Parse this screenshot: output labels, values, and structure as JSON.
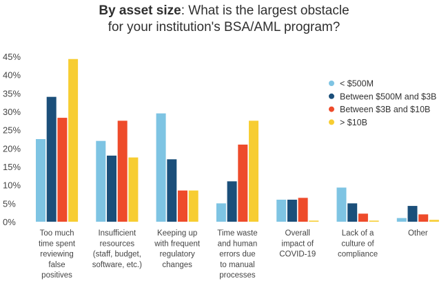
{
  "chart_data": {
    "type": "bar",
    "title_bold": "By asset size",
    "title_rest": ": What is the largest obstacle",
    "title_line2": "for your institution's BSA/AML program?",
    "xlabel": "",
    "ylabel": "",
    "ylim": [
      0,
      45
    ],
    "yticks": [
      "0%",
      "5%",
      "10%",
      "15%",
      "20%",
      "25%",
      "30%",
      "35%",
      "40%",
      "45%"
    ],
    "legend_position": "top-right",
    "grid": false,
    "categories": [
      [
        "Too much",
        "time spent",
        "reviewing",
        "false",
        "positives"
      ],
      [
        "Insufficient",
        "resources",
        "(staff, budget,",
        "software, etc.)"
      ],
      [
        "Keeping up",
        "with frequent",
        "regulatory",
        "changes"
      ],
      [
        "Time waste",
        "and human",
        "errors due",
        "to manual",
        "processes"
      ],
      [
        "Overall",
        "impact of",
        "COVID-19"
      ],
      [
        "Lack of a",
        "culture of",
        "compliance"
      ],
      [
        "Other"
      ]
    ],
    "series": [
      {
        "name": "< $500M",
        "color": "#7ec4e3",
        "values": [
          22.5,
          22,
          29.5,
          5,
          6,
          9.3,
          1
        ]
      },
      {
        "name": "Between $500M and $3B",
        "color": "#1b4f7a",
        "values": [
          34,
          18,
          17,
          11,
          6,
          5,
          4.3
        ]
      },
      {
        "name": "Between $3B and $10B",
        "color": "#ee4b2b",
        "values": [
          28.3,
          27.5,
          8.5,
          21,
          6.5,
          2.2,
          2
        ]
      },
      {
        "name": "> $10B",
        "color": "#f7cd32",
        "values": [
          44.3,
          17.5,
          8.5,
          27.5,
          0.3,
          0.3,
          0.5
        ]
      }
    ]
  }
}
